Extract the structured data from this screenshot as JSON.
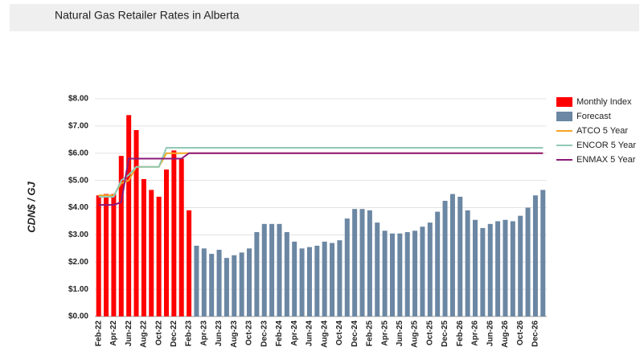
{
  "chart_data": {
    "type": "bar",
    "title": "Natural Gas Retailer Rates in Alberta",
    "y_label": "CDN$ / GJ",
    "categories": [
      "Feb-22",
      null,
      "Apr-22",
      null,
      "Jun-22",
      null,
      "Aug-22",
      null,
      "Oct-22",
      null,
      "Dec-22",
      null,
      "Feb-23",
      null,
      "Apr-23",
      null,
      "Jun-23",
      null,
      "Aug-23",
      null,
      "Oct-23",
      null,
      "Dec-23",
      null,
      "Feb-24",
      null,
      "Apr-24",
      null,
      "Jun-24",
      null,
      "Aug-24",
      null,
      "Oct-24",
      null,
      "Dec-24",
      null,
      "Feb-25",
      null,
      "Apr-25",
      null,
      "Jun-25",
      null,
      "Aug-25",
      null,
      "Oct-25",
      null,
      "Dec-25",
      null,
      "Feb-26",
      null,
      "Apr-26",
      null,
      "Jun-26",
      null,
      "Aug-26",
      null,
      "Oct-26",
      null,
      "Dec-26",
      null
    ],
    "series": [
      {
        "name": "Monthly Index",
        "type": "bar",
        "color": "#ff0000",
        "values": [
          4.45,
          4.5,
          4.5,
          5.9,
          7.4,
          6.85,
          5.05,
          4.65,
          4.4,
          5.4,
          6.1,
          5.8,
          3.9,
          null,
          null,
          null,
          null,
          null,
          null,
          null,
          null,
          null,
          null,
          null,
          null,
          null,
          null,
          null,
          null,
          null,
          null,
          null,
          null,
          null,
          null,
          null,
          null,
          null,
          null,
          null,
          null,
          null,
          null,
          null,
          null,
          null,
          null,
          null,
          null,
          null,
          null,
          null,
          null,
          null,
          null,
          null,
          null,
          null,
          null,
          null
        ]
      },
      {
        "name": "Forecast",
        "type": "bar",
        "color": "#6b87a3",
        "values": [
          null,
          null,
          null,
          null,
          null,
          null,
          null,
          null,
          null,
          null,
          null,
          null,
          null,
          2.6,
          2.5,
          2.3,
          2.45,
          2.15,
          2.25,
          2.35,
          2.5,
          3.1,
          3.4,
          3.4,
          3.4,
          3.1,
          2.75,
          2.5,
          2.55,
          2.6,
          2.75,
          2.7,
          2.8,
          3.6,
          3.95,
          3.95,
          3.9,
          3.45,
          3.15,
          3.05,
          3.05,
          3.1,
          3.15,
          3.3,
          3.45,
          3.85,
          4.25,
          4.5,
          4.4,
          3.9,
          3.55,
          3.25,
          3.4,
          3.5,
          3.55,
          3.5,
          3.7,
          4.0,
          4.45,
          4.65
        ]
      },
      {
        "name": "ATCO 5 Year",
        "type": "line",
        "color": "#f5a623",
        "values": [
          4.45,
          4.45,
          4.45,
          4.9,
          5.0,
          5.5,
          5.5,
          5.5,
          5.5,
          6.0,
          6.0,
          6.0,
          6.0,
          6.0,
          6.0,
          6.0,
          6.0,
          6.0,
          6.0,
          6.0,
          6.0,
          6.0,
          6.0,
          6.0,
          6.0,
          6.0,
          6.0,
          6.0,
          6.0,
          6.0,
          6.0,
          6.0,
          6.0,
          6.0,
          6.0,
          6.0,
          6.0,
          6.0,
          6.0,
          6.0,
          6.0,
          6.0,
          6.0,
          6.0,
          6.0,
          6.0,
          6.0,
          6.0,
          6.0,
          6.0,
          6.0,
          6.0,
          6.0,
          6.0,
          6.0,
          6.0,
          6.0,
          6.0,
          6.0,
          6.0
        ]
      },
      {
        "name": "ENCOR 5 Year",
        "type": "line",
        "color": "#8fc9b5",
        "values": [
          4.4,
          4.4,
          4.4,
          5.0,
          5.2,
          5.5,
          5.5,
          5.5,
          5.5,
          6.2,
          6.2,
          6.2,
          6.2,
          6.2,
          6.2,
          6.2,
          6.2,
          6.2,
          6.2,
          6.2,
          6.2,
          6.2,
          6.2,
          6.2,
          6.2,
          6.2,
          6.2,
          6.2,
          6.2,
          6.2,
          6.2,
          6.2,
          6.2,
          6.2,
          6.2,
          6.2,
          6.2,
          6.2,
          6.2,
          6.2,
          6.2,
          6.2,
          6.2,
          6.2,
          6.2,
          6.2,
          6.2,
          6.2,
          6.2,
          6.2,
          6.2,
          6.2,
          6.2,
          6.2,
          6.2,
          6.2,
          6.2,
          6.2,
          6.2,
          6.2
        ]
      },
      {
        "name": "ENMAX 5 Year",
        "type": "line",
        "color": "#8b1a7a",
        "values": [
          4.1,
          4.1,
          4.1,
          4.2,
          5.8,
          5.8,
          5.8,
          5.8,
          5.8,
          5.8,
          5.8,
          5.8,
          6.0,
          6.0,
          6.0,
          6.0,
          6.0,
          6.0,
          6.0,
          6.0,
          6.0,
          6.0,
          6.0,
          6.0,
          6.0,
          6.0,
          6.0,
          6.0,
          6.0,
          6.0,
          6.0,
          6.0,
          6.0,
          6.0,
          6.0,
          6.0,
          6.0,
          6.0,
          6.0,
          6.0,
          6.0,
          6.0,
          6.0,
          6.0,
          6.0,
          6.0,
          6.0,
          6.0,
          6.0,
          6.0,
          6.0,
          6.0,
          6.0,
          6.0,
          6.0,
          6.0,
          6.0,
          6.0,
          6.0,
          6.0
        ]
      }
    ],
    "ylim": [
      0,
      8
    ],
    "yticks": [
      {
        "value": 0,
        "label": "$0.00"
      },
      {
        "value": 1,
        "label": "$1.00"
      },
      {
        "value": 2,
        "label": "$2.00"
      },
      {
        "value": 3,
        "label": "$3.00"
      },
      {
        "value": 4,
        "label": "$4.00"
      },
      {
        "value": 5,
        "label": "$5.00"
      },
      {
        "value": 6,
        "label": "$6.00"
      },
      {
        "value": 7,
        "label": "$7.00"
      },
      {
        "value": 8,
        "label": "$8.00"
      }
    ],
    "grid": true,
    "legend": "right"
  }
}
